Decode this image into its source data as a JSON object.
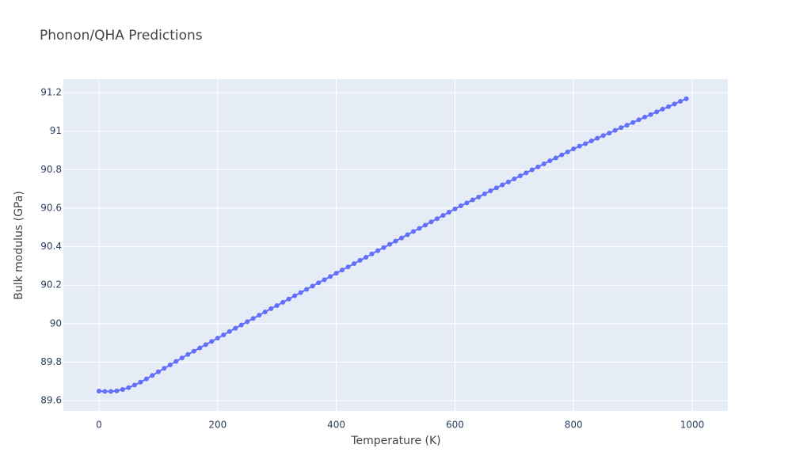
{
  "chart_data": {
    "type": "line",
    "title": "Phonon/QHA Predictions",
    "x_label": "Temperature (K)",
    "y_label": "Bulk modulus (GPa)",
    "x": [
      0,
      10,
      20,
      30,
      40,
      50,
      60,
      70,
      80,
      90,
      100,
      110,
      120,
      130,
      140,
      150,
      160,
      170,
      180,
      190,
      200,
      210,
      220,
      230,
      240,
      250,
      260,
      270,
      280,
      290,
      300,
      310,
      320,
      330,
      340,
      350,
      360,
      370,
      380,
      390,
      400,
      410,
      420,
      430,
      440,
      450,
      460,
      470,
      480,
      490,
      500,
      510,
      520,
      530,
      540,
      550,
      560,
      570,
      580,
      590,
      600,
      610,
      620,
      630,
      640,
      650,
      660,
      670,
      680,
      690,
      700,
      710,
      720,
      730,
      740,
      750,
      760,
      770,
      780,
      790,
      800,
      810,
      820,
      830,
      840,
      850,
      860,
      870,
      880,
      890,
      900,
      910,
      920,
      930,
      940,
      950,
      960,
      970,
      980,
      990
    ],
    "series": [
      {
        "name": "Bulk modulus",
        "color": "#636efa",
        "values": [
          89.65,
          89.648,
          89.648,
          89.651,
          89.658,
          89.668,
          89.681,
          89.696,
          89.713,
          89.731,
          89.75,
          89.768,
          89.786,
          89.804,
          89.822,
          89.84,
          89.857,
          89.874,
          89.891,
          89.908,
          89.925,
          89.942,
          89.959,
          89.976,
          89.993,
          90.01,
          90.027,
          90.044,
          90.061,
          90.078,
          90.094,
          90.111,
          90.128,
          90.145,
          90.161,
          90.178,
          90.195,
          90.212,
          90.228,
          90.245,
          90.262,
          90.279,
          90.295,
          90.312,
          90.329,
          90.345,
          90.362,
          90.379,
          90.395,
          90.412,
          90.429,
          90.445,
          90.462,
          90.479,
          90.495,
          90.512,
          90.529,
          90.545,
          90.562,
          90.579,
          90.596,
          90.612,
          90.627,
          90.643,
          90.658,
          90.674,
          90.69,
          90.705,
          90.721,
          90.736,
          90.752,
          90.768,
          90.783,
          90.799,
          90.814,
          90.83,
          90.846,
          90.861,
          90.877,
          90.892,
          90.908,
          90.922,
          90.935,
          90.949,
          90.963,
          90.977,
          90.99,
          91.004,
          91.018,
          91.031,
          91.045,
          91.059,
          91.073,
          91.086,
          91.1,
          91.114,
          91.127,
          91.141,
          91.155,
          91.168
        ]
      }
    ],
    "xlim": [
      -60,
      1060
    ],
    "ylim": [
      89.547,
      91.27
    ],
    "xticks": [
      0,
      200,
      400,
      600,
      800,
      1000
    ],
    "yticks": [
      89.6,
      89.8,
      90,
      90.2,
      90.4,
      90.6,
      90.8,
      91,
      91.2
    ],
    "grid": true
  }
}
